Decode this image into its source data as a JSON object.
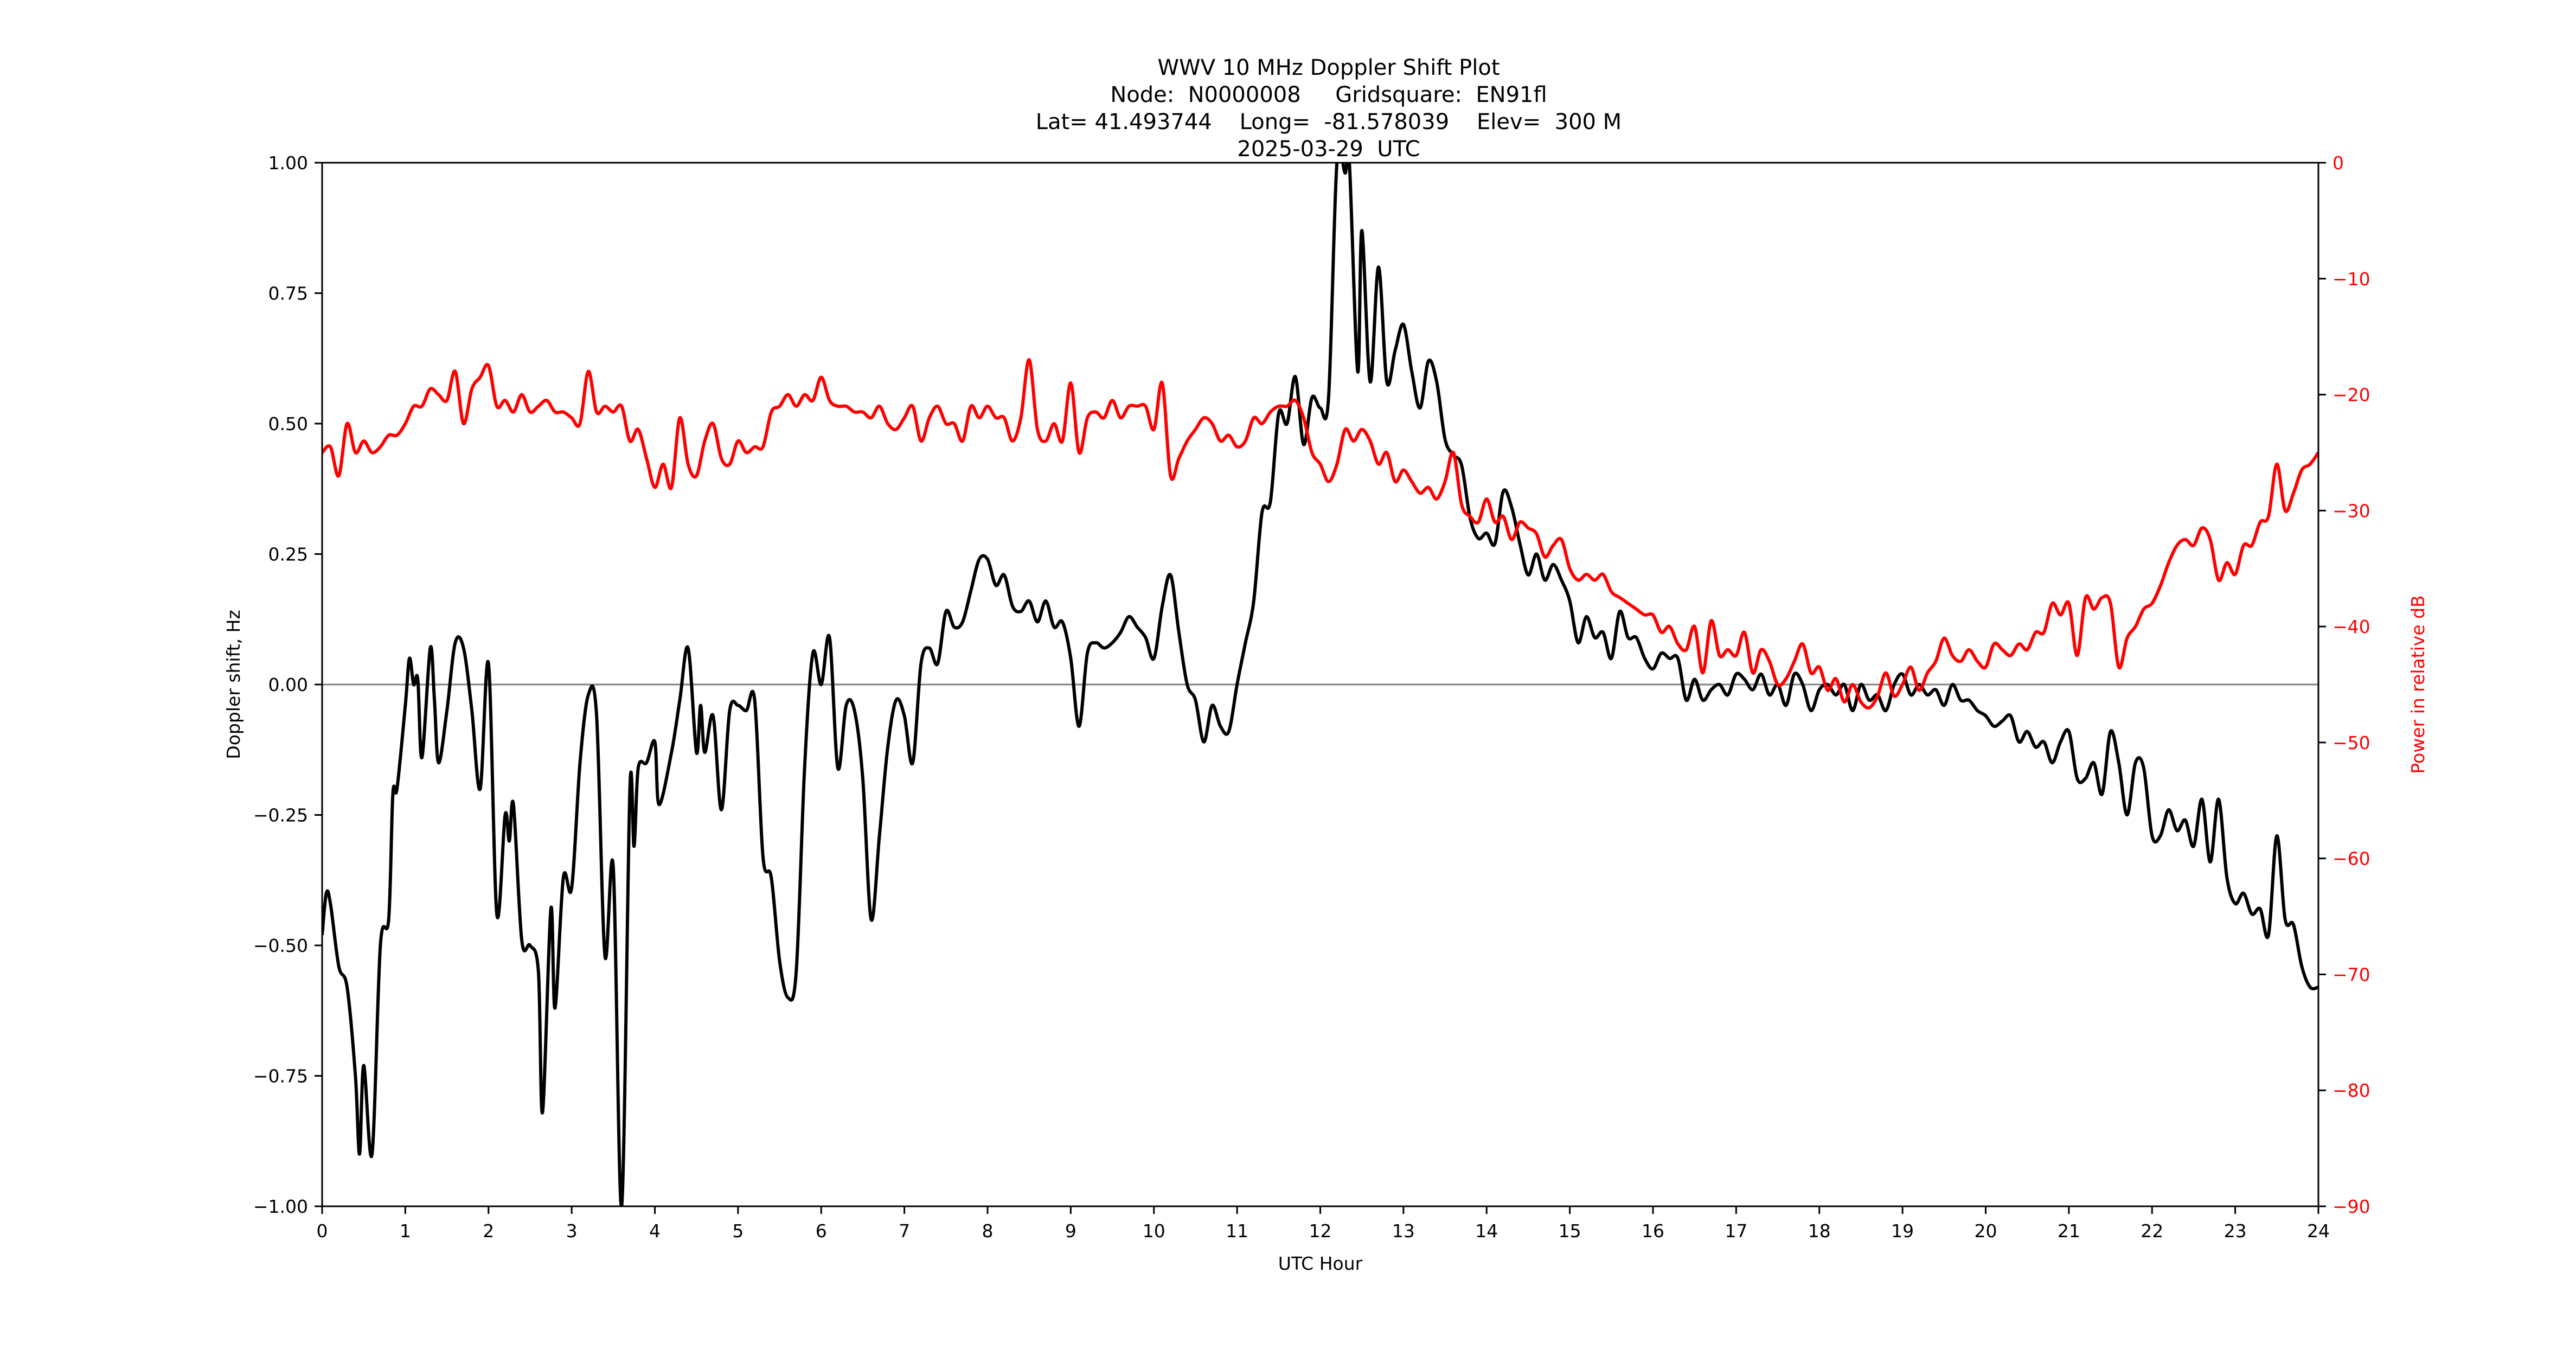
{
  "title": {
    "line1": "WWV 10 MHz Doppler Shift Plot",
    "line2": "Node:  N0000008     Gridsquare:  EN91fl",
    "line3": "Lat= 41.493744    Long=  -81.578039    Elev=  300 M",
    "line4": "2025-03-29  UTC"
  },
  "colors": {
    "doppler": "#000000",
    "power": "#ff0000",
    "zero_line": "#808080",
    "axis": "#000000"
  },
  "chart_data": {
    "type": "line",
    "title": "WWV 10 MHz Doppler Shift Plot",
    "subtitle": [
      "Node:  N0000008     Gridsquare:  EN91fl",
      "Lat= 41.493744    Long=  -81.578039    Elev=  300 M",
      "2025-03-29  UTC"
    ],
    "xlabel": "UTC Hour",
    "ylabel": "Doppler shift, Hz",
    "y2label": "Power in relative dB",
    "xlim": [
      0,
      24
    ],
    "ylim": [
      -1.0,
      1.0
    ],
    "y2lim": [
      -90,
      0
    ],
    "xticks": [
      0,
      1,
      2,
      3,
      4,
      5,
      6,
      7,
      8,
      9,
      10,
      11,
      12,
      13,
      14,
      15,
      16,
      17,
      18,
      19,
      20,
      21,
      22,
      23,
      24
    ],
    "yticks": [
      "1.00",
      "0.75",
      "0.50",
      "0.25",
      "0.00",
      "−0.25",
      "−0.50",
      "−0.75",
      "−1.00"
    ],
    "ytick_values": [
      1.0,
      0.75,
      0.5,
      0.25,
      0.0,
      -0.25,
      -0.5,
      -0.75,
      -1.0
    ],
    "y2ticks": [
      "0",
      "−10",
      "−20",
      "−30",
      "−40",
      "−50",
      "−60",
      "−70",
      "−80",
      "−90"
    ],
    "y2tick_values": [
      0,
      -10,
      -20,
      -30,
      -40,
      -50,
      -60,
      -70,
      -80,
      -90
    ],
    "grid": false,
    "zero_line": true,
    "legend": null,
    "series": [
      {
        "name": "Doppler shift, Hz",
        "axis": "left",
        "color": "#000000",
        "x": [
          0,
          0.05,
          0.1,
          0.2,
          0.3,
          0.4,
          0.45,
          0.5,
          0.6,
          0.7,
          0.8,
          0.85,
          0.9,
          1.0,
          1.05,
          1.1,
          1.15,
          1.2,
          1.3,
          1.35,
          1.4,
          1.5,
          1.6,
          1.7,
          1.8,
          1.9,
          2.0,
          2.1,
          2.2,
          2.25,
          2.3,
          2.4,
          2.5,
          2.6,
          2.65,
          2.75,
          2.8,
          2.9,
          3.0,
          3.1,
          3.2,
          3.3,
          3.4,
          3.5,
          3.6,
          3.7,
          3.75,
          3.8,
          3.9,
          4.0,
          4.05,
          4.2,
          4.3,
          4.4,
          4.5,
          4.55,
          4.6,
          4.7,
          4.8,
          4.9,
          5.0,
          5.1,
          5.2,
          5.3,
          5.4,
          5.5,
          5.6,
          5.7,
          5.8,
          5.9,
          6.0,
          6.1,
          6.2,
          6.3,
          6.4,
          6.5,
          6.6,
          6.7,
          6.8,
          6.9,
          7.0,
          7.1,
          7.2,
          7.3,
          7.4,
          7.5,
          7.6,
          7.7,
          7.8,
          7.9,
          8.0,
          8.1,
          8.2,
          8.3,
          8.4,
          8.5,
          8.6,
          8.7,
          8.8,
          8.9,
          9.0,
          9.1,
          9.2,
          9.3,
          9.4,
          9.5,
          9.6,
          9.7,
          9.8,
          9.9,
          10.0,
          10.1,
          10.2,
          10.3,
          10.4,
          10.5,
          10.6,
          10.7,
          10.8,
          10.9,
          11.0,
          11.1,
          11.2,
          11.3,
          11.4,
          11.5,
          11.6,
          11.7,
          11.8,
          11.9,
          12.0,
          12.1,
          12.2,
          12.3,
          12.35,
          12.45,
          12.5,
          12.6,
          12.7,
          12.8,
          12.9,
          13.0,
          13.1,
          13.2,
          13.3,
          13.4,
          13.5,
          13.6,
          13.7,
          13.8,
          13.9,
          14.0,
          14.1,
          14.2,
          14.3,
          14.4,
          14.5,
          14.6,
          14.7,
          14.8,
          14.9,
          15.0,
          15.1,
          15.2,
          15.3,
          15.4,
          15.5,
          15.6,
          15.7,
          15.8,
          15.9,
          16.0,
          16.1,
          16.2,
          16.3,
          16.4,
          16.5,
          16.6,
          16.7,
          16.8,
          16.9,
          17.0,
          17.1,
          17.2,
          17.3,
          17.4,
          17.5,
          17.6,
          17.7,
          17.8,
          17.9,
          18.0,
          18.1,
          18.2,
          18.3,
          18.4,
          18.5,
          18.6,
          18.7,
          18.8,
          18.9,
          19.0,
          19.1,
          19.2,
          19.3,
          19.4,
          19.5,
          19.6,
          19.7,
          19.8,
          19.9,
          20.0,
          20.1,
          20.2,
          20.3,
          20.4,
          20.5,
          20.6,
          20.7,
          20.8,
          20.9,
          21.0,
          21.1,
          21.2,
          21.3,
          21.4,
          21.5,
          21.6,
          21.7,
          21.8,
          21.9,
          22.0,
          22.1,
          22.2,
          22.3,
          22.4,
          22.5,
          22.6,
          22.7,
          22.8,
          22.9,
          23.0,
          23.1,
          23.2,
          23.3,
          23.4,
          23.5,
          23.6,
          23.7,
          23.8,
          23.9,
          24.0
        ],
        "values": [
          -0.48,
          -0.4,
          -0.42,
          -0.54,
          -0.58,
          -0.75,
          -0.9,
          -0.73,
          -0.9,
          -0.5,
          -0.45,
          -0.21,
          -0.2,
          -0.04,
          0.05,
          0.0,
          0.01,
          -0.14,
          0.07,
          -0.03,
          -0.15,
          -0.05,
          0.08,
          0.07,
          -0.05,
          -0.2,
          0.04,
          -0.44,
          -0.25,
          -0.3,
          -0.23,
          -0.49,
          -0.5,
          -0.55,
          -0.82,
          -0.43,
          -0.62,
          -0.37,
          -0.39,
          -0.15,
          -0.02,
          -0.06,
          -0.52,
          -0.35,
          -1.0,
          -0.2,
          -0.31,
          -0.16,
          -0.15,
          -0.11,
          -0.23,
          -0.13,
          -0.03,
          0.07,
          -0.13,
          -0.04,
          -0.13,
          -0.06,
          -0.24,
          -0.05,
          -0.04,
          -0.05,
          -0.03,
          -0.33,
          -0.37,
          -0.53,
          -0.6,
          -0.55,
          -0.16,
          0.06,
          0.0,
          0.09,
          -0.16,
          -0.04,
          -0.05,
          -0.18,
          -0.45,
          -0.29,
          -0.12,
          -0.03,
          -0.06,
          -0.15,
          0.04,
          0.07,
          0.04,
          0.14,
          0.11,
          0.12,
          0.18,
          0.24,
          0.24,
          0.19,
          0.21,
          0.15,
          0.14,
          0.16,
          0.12,
          0.16,
          0.11,
          0.12,
          0.05,
          -0.08,
          0.06,
          0.08,
          0.07,
          0.08,
          0.1,
          0.13,
          0.11,
          0.09,
          0.05,
          0.15,
          0.21,
          0.1,
          0.0,
          -0.03,
          -0.11,
          -0.04,
          -0.08,
          -0.09,
          0.0,
          0.08,
          0.16,
          0.33,
          0.35,
          0.52,
          0.5,
          0.59,
          0.46,
          0.55,
          0.53,
          0.55,
          1.0,
          0.98,
          1.0,
          0.6,
          0.87,
          0.58,
          0.8,
          0.58,
          0.64,
          0.69,
          0.6,
          0.53,
          0.62,
          0.58,
          0.47,
          0.44,
          0.42,
          0.32,
          0.28,
          0.29,
          0.27,
          0.37,
          0.34,
          0.27,
          0.21,
          0.25,
          0.2,
          0.23,
          0.2,
          0.16,
          0.08,
          0.13,
          0.09,
          0.1,
          0.05,
          0.14,
          0.09,
          0.09,
          0.05,
          0.03,
          0.06,
          0.05,
          0.05,
          -0.03,
          0.01,
          -0.03,
          -0.01,
          0.0,
          -0.02,
          0.02,
          0.01,
          -0.01,
          0.02,
          -0.02,
          0.0,
          -0.04,
          0.02,
          0.0,
          -0.05,
          -0.01,
          0.0,
          -0.02,
          0.0,
          -0.05,
          0.0,
          -0.03,
          -0.02,
          -0.05,
          0.0,
          0.02,
          -0.02,
          0.0,
          -0.02,
          -0.01,
          -0.04,
          0.0,
          -0.03,
          -0.03,
          -0.05,
          -0.06,
          -0.08,
          -0.07,
          -0.06,
          -0.11,
          -0.09,
          -0.12,
          -0.11,
          -0.15,
          -0.11,
          -0.09,
          -0.18,
          -0.18,
          -0.15,
          -0.21,
          -0.09,
          -0.15,
          -0.25,
          -0.15,
          -0.16,
          -0.29,
          -0.29,
          -0.24,
          -0.28,
          -0.26,
          -0.31,
          -0.22,
          -0.34,
          -0.22,
          -0.37,
          -0.42,
          -0.4,
          -0.44,
          -0.43,
          -0.48,
          -0.29,
          -0.45,
          -0.46,
          -0.54,
          -0.58,
          -0.58
        ]
      },
      {
        "name": "Power in relative dB",
        "axis": "right",
        "color": "#ff0000",
        "x_step": 0.1,
        "values": [
          -25,
          -24.5,
          -27,
          -22.5,
          -25,
          -24,
          -25,
          -24.5,
          -23.5,
          -23.5,
          -22.5,
          -21,
          -21,
          -19.5,
          -20,
          -20.5,
          -18,
          -22.5,
          -19.5,
          -18.5,
          -17.5,
          -21,
          -20.5,
          -21.5,
          -20,
          -21.5,
          -21,
          -20.5,
          -21.5,
          -21.5,
          -22,
          -22.5,
          -18,
          -21.5,
          -21,
          -21.5,
          -21,
          -24,
          -23,
          -25.5,
          -28,
          -26,
          -28,
          -22,
          -26,
          -27,
          -24,
          -22.5,
          -25.5,
          -26,
          -24,
          -25,
          -24.5,
          -24.5,
          -21.5,
          -21,
          -20,
          -21,
          -20,
          -20.5,
          -18.5,
          -20.5,
          -21,
          -21,
          -21.5,
          -21.5,
          -22,
          -21,
          -22.5,
          -23,
          -22,
          -21,
          -24,
          -22,
          -21,
          -22.5,
          -22.5,
          -24,
          -21,
          -22,
          -21,
          -22,
          -22,
          -24,
          -22,
          -17,
          -23,
          -24,
          -22.5,
          -24,
          -19,
          -25,
          -22,
          -21.5,
          -22,
          -20.5,
          -22,
          -21,
          -21,
          -21,
          -23,
          -19,
          -27,
          -25.5,
          -24,
          -23,
          -22,
          -22.5,
          -24,
          -23.5,
          -24.5,
          -24,
          -22,
          -22.5,
          -21.5,
          -21,
          -21,
          -20.5,
          -22,
          -25,
          -26,
          -27.5,
          -26,
          -23,
          -24,
          -23,
          -24,
          -26,
          -25,
          -27.5,
          -26.5,
          -27.5,
          -28.5,
          -28,
          -29,
          -27.5,
          -25,
          -29.5,
          -30.5,
          -31,
          -29,
          -31,
          -30.5,
          -32.5,
          -31,
          -31.5,
          -32,
          -34,
          -33,
          -32.5,
          -35,
          -36,
          -35.5,
          -36,
          -35.5,
          -37,
          -37.5,
          -38,
          -38.5,
          -39,
          -39,
          -40.5,
          -40,
          -41.5,
          -42,
          -40,
          -44,
          -39.5,
          -42.5,
          -42,
          -42.5,
          -40.5,
          -44,
          -42,
          -43,
          -45,
          -44.5,
          -43,
          -41.5,
          -44,
          -43.5,
          -45.5,
          -44.5,
          -46.5,
          -45,
          -46.5,
          -47,
          -46,
          -44,
          -46,
          -45,
          -43.5,
          -45.5,
          -44,
          -43,
          -41,
          -42.5,
          -43,
          -42,
          -43,
          -43.5,
          -41.5,
          -42,
          -42.5,
          -41.5,
          -42,
          -40.5,
          -40.5,
          -38,
          -39,
          -38,
          -42.5,
          -37.5,
          -38.5,
          -37.5,
          -38,
          -43.5,
          -41,
          -40,
          -38.5,
          -38,
          -36.5,
          -34.5,
          -33,
          -32.5,
          -33,
          -31.5,
          -32.5,
          -36,
          -34.5,
          -35.5,
          -33,
          -33,
          -31,
          -30.5,
          -26,
          -30,
          -28.5,
          -26.5,
          -26,
          -25
        ]
      }
    ]
  }
}
